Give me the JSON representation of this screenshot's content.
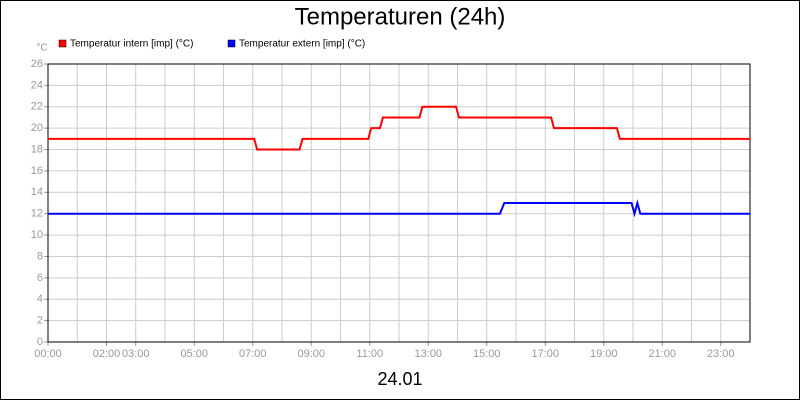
{
  "chart_data": {
    "type": "line",
    "title": "Temperaturen (24h)",
    "y_unit": "°C",
    "footer": "24.01",
    "xlim": [
      0,
      24
    ],
    "xticks": [
      {
        "value": 0,
        "label": "00:00"
      },
      {
        "value": 2,
        "label": "02:00"
      },
      {
        "value": 3,
        "label": "03:00"
      },
      {
        "value": 5,
        "label": "05:00"
      },
      {
        "value": 7,
        "label": "07:00"
      },
      {
        "value": 9,
        "label": "09:00"
      },
      {
        "value": 11,
        "label": "11:00"
      },
      {
        "value": 13,
        "label": "13:00"
      },
      {
        "value": 15,
        "label": "15:00"
      },
      {
        "value": 17,
        "label": "17:00"
      },
      {
        "value": 19,
        "label": "19:00"
      },
      {
        "value": 21,
        "label": "21:00"
      },
      {
        "value": 23,
        "label": "23:00"
      }
    ],
    "xgrid": [
      1,
      2,
      3,
      4,
      5,
      6,
      7,
      8,
      9,
      10,
      11,
      12,
      13,
      14,
      15,
      16,
      17,
      18,
      19,
      20,
      21,
      22,
      23
    ],
    "ylim": [
      0,
      26
    ],
    "yticks": [
      0,
      2,
      4,
      6,
      8,
      10,
      12,
      14,
      16,
      18,
      20,
      22,
      24,
      26
    ],
    "grid": true,
    "series": [
      {
        "name": "Temperatur intern [imp] (°C)",
        "color": "#ff0000",
        "x": [
          0,
          7.05,
          7.15,
          8.6,
          8.7,
          10.95,
          11.05,
          11.35,
          11.45,
          12.7,
          12.8,
          13.95,
          14.05,
          17.2,
          17.3,
          19.45,
          19.55,
          24
        ],
        "values": [
          19,
          19,
          18,
          18,
          19,
          19,
          20,
          20,
          21,
          21,
          22,
          22,
          21,
          21,
          20,
          20,
          19,
          19
        ]
      },
      {
        "name": "Temperatur extern [imp] (°C)",
        "color": "#0000ff",
        "x": [
          0,
          15.45,
          15.6,
          19.95,
          20.05,
          20.15,
          20.25,
          24
        ],
        "values": [
          12,
          12,
          13,
          13,
          12,
          13,
          12,
          12
        ]
      }
    ]
  }
}
